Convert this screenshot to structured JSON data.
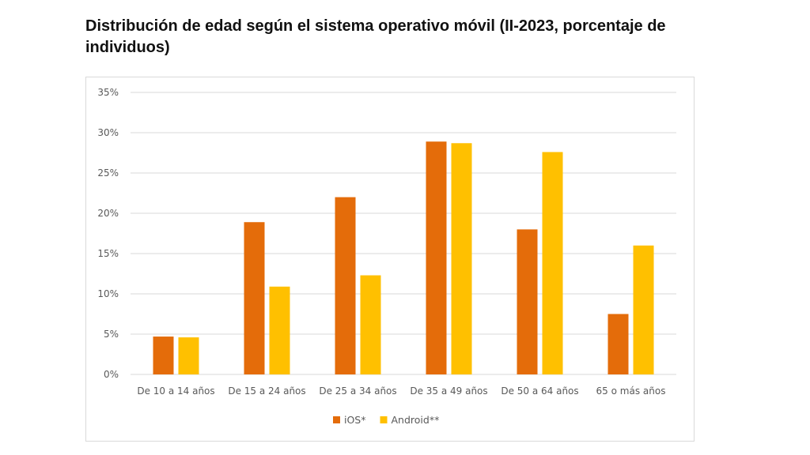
{
  "title": "Distribución de edad según el sistema operativo móvil (II-2023, porcentaje de individuos)",
  "chart_data": {
    "type": "bar",
    "title": "Distribución de edad según el sistema operativo móvil (II-2023, porcentaje de individuos)",
    "categories": [
      "De 10 a 14 años",
      "De 15 a 24 años",
      "De 25 a 34 años",
      "De 35 a 49 años",
      "De 50 a 64 años",
      "65 o más años"
    ],
    "series": [
      {
        "name": "iOS*",
        "color": "#e46c0a",
        "values": [
          4.7,
          18.9,
          22.0,
          28.9,
          18.0,
          7.5
        ]
      },
      {
        "name": "Android**",
        "color": "#ffc000",
        "values": [
          4.6,
          10.9,
          12.3,
          28.7,
          27.6,
          16.0
        ]
      }
    ],
    "yticks": [
      "0%",
      "5%",
      "10%",
      "15%",
      "20%",
      "25%",
      "30%",
      "35%"
    ],
    "ylim": [
      0,
      35
    ],
    "xlabel": "",
    "ylabel": "",
    "grid": true,
    "legend": "bottom"
  }
}
